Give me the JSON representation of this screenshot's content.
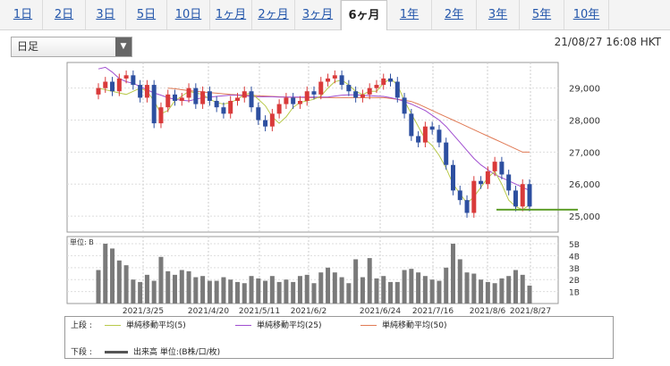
{
  "tabs": [
    {
      "label": "1日",
      "active": false
    },
    {
      "label": "2日",
      "active": false
    },
    {
      "label": "3日",
      "active": false
    },
    {
      "label": "5日",
      "active": false
    },
    {
      "label": "10日",
      "active": false
    },
    {
      "label": "1ヶ月",
      "active": false
    },
    {
      "label": "2ヶ月",
      "active": false
    },
    {
      "label": "3ヶ月",
      "active": false
    },
    {
      "label": "6ヶ月",
      "active": true
    },
    {
      "label": "1年",
      "active": false
    },
    {
      "label": "2年",
      "active": false
    },
    {
      "label": "3年",
      "active": false
    },
    {
      "label": "5年",
      "active": false
    },
    {
      "label": "10年",
      "active": false
    }
  ],
  "period_select": {
    "value": "日足"
  },
  "timestamp": "21/08/27 16:08 HKT",
  "price_axis": [
    "29,000",
    "28,000",
    "27,000",
    "26,000",
    "25,000"
  ],
  "volume_axis": [
    "5B",
    "4B",
    "3B",
    "2B",
    "1B"
  ],
  "volume_unit_label": "単位: B",
  "date_labels": [
    "2021/3/25",
    "2021/4/20",
    "2021/5/11",
    "2021/6/2",
    "2021/6/24",
    "2021/7/16",
    "2021/8/6",
    "2021/8/27"
  ],
  "legend": {
    "upper_label": "上段 :",
    "lower_label": "下段 :",
    "ma5": "単純移動平均(5)",
    "ma25": "単純移動平均(25)",
    "ma50": "単純移動平均(50)",
    "volume": "出来高 単位:(B株/口/枚)"
  },
  "colors": {
    "up": "#d93a3a",
    "down": "#2d4fa0",
    "ma5": "#b8c94a",
    "ma25": "#a04ed0",
    "ma50": "#e07a55",
    "support": "#5e9e2a",
    "volume": "#7a7a7a"
  },
  "chart_data": {
    "type": "candlestick",
    "ylim": [
      24500,
      29800
    ],
    "support_level": 25200,
    "ma5": [
      29000,
      28950,
      28900,
      28850,
      28800,
      28900,
      29000,
      28900,
      28600,
      28200,
      28300,
      28600,
      28750,
      28900,
      28850,
      28800,
      28650,
      28550,
      28500,
      28550,
      28650,
      28800,
      28850,
      28650,
      28450,
      28100,
      27900,
      28100,
      28400,
      28550,
      28600,
      28650,
      28750,
      29000,
      29200,
      29250,
      29100,
      28900,
      28800,
      28900,
      28900,
      29150,
      29300,
      29100,
      28600,
      28200,
      27800,
      27400,
      27200,
      26900,
      26500,
      26000,
      25700,
      25400,
      25600,
      25900,
      26200,
      26400,
      26000,
      25500,
      25300,
      25200,
      25350
    ],
    "ma25": [
      29600,
      29650,
      29500,
      29300,
      29200,
      29150,
      29050,
      28950,
      28850,
      28780,
      28700,
      28650,
      28620,
      28600,
      28650,
      28700,
      28720,
      28740,
      28760,
      28780,
      28780,
      28760,
      28740,
      28730,
      28730,
      28730,
      28720,
      28720,
      28720,
      28720,
      28720,
      28720,
      28720,
      28720,
      28750,
      28780,
      28790,
      28790,
      28780,
      28760,
      28750,
      28740,
      28700,
      28650,
      28580,
      28500,
      28400,
      28300,
      28150,
      28000,
      27800,
      27550,
      27300,
      27050,
      26800,
      26600,
      26450,
      26300,
      26200,
      26100,
      26000,
      25900,
      25800
    ],
    "ma50": [
      null,
      null,
      null,
      null,
      null,
      null,
      null,
      null,
      null,
      null,
      29000,
      28980,
      28950,
      28920,
      28900,
      28880,
      28860,
      28840,
      28820,
      28800,
      28790,
      28780,
      28770,
      28760,
      28750,
      28740,
      28730,
      28720,
      28710,
      28710,
      28700,
      28700,
      28700,
      28700,
      28700,
      28700,
      28700,
      28700,
      28700,
      28700,
      28700,
      28700,
      28680,
      28650,
      28620,
      28580,
      28500,
      28400,
      28300,
      28200,
      28100,
      28000,
      27900,
      27800,
      27700,
      27600,
      27500,
      27400,
      27300,
      27200,
      27100,
      27000,
      27000
    ],
    "closes": [
      29000,
      29200,
      28900,
      29300,
      29400,
      29100,
      28700,
      29100,
      27900,
      28400,
      28800,
      28600,
      28700,
      29000,
      28500,
      28900,
      28600,
      28400,
      28200,
      28600,
      28700,
      28900,
      28400,
      28000,
      27800,
      28200,
      28500,
      28700,
      28500,
      28600,
      28900,
      28800,
      29200,
      29300,
      29400,
      29100,
      28900,
      28700,
      28800,
      29000,
      29100,
      29300,
      29200,
      28700,
      28200,
      27500,
      27300,
      27800,
      27700,
      27300,
      26600,
      25800,
      25500,
      25100,
      26100,
      26000,
      26400,
      26700,
      26300,
      25800,
      25300,
      26000,
      25300
    ],
    "volumes": [
      2.8,
      5.0,
      4.6,
      3.6,
      3.2,
      2.0,
      1.8,
      2.4,
      1.9,
      3.9,
      2.7,
      2.4,
      2.8,
      2.7,
      2.2,
      2.3,
      1.9,
      1.9,
      2.2,
      2.0,
      1.8,
      1.7,
      2.3,
      2.1,
      1.9,
      2.3,
      1.8,
      2.0,
      1.8,
      2.3,
      2.4,
      1.7,
      2.6,
      3.0,
      2.6,
      2.2,
      1.7,
      3.7,
      2.2,
      3.8,
      2.1,
      2.3,
      1.8,
      1.8,
      2.8,
      2.9,
      2.6,
      2.3,
      2.0,
      1.9,
      3.0,
      5.0,
      3.7,
      2.6,
      2.5,
      2.0,
      1.8,
      1.7,
      2.1,
      2.3,
      2.8,
      2.4,
      1.5
    ]
  }
}
